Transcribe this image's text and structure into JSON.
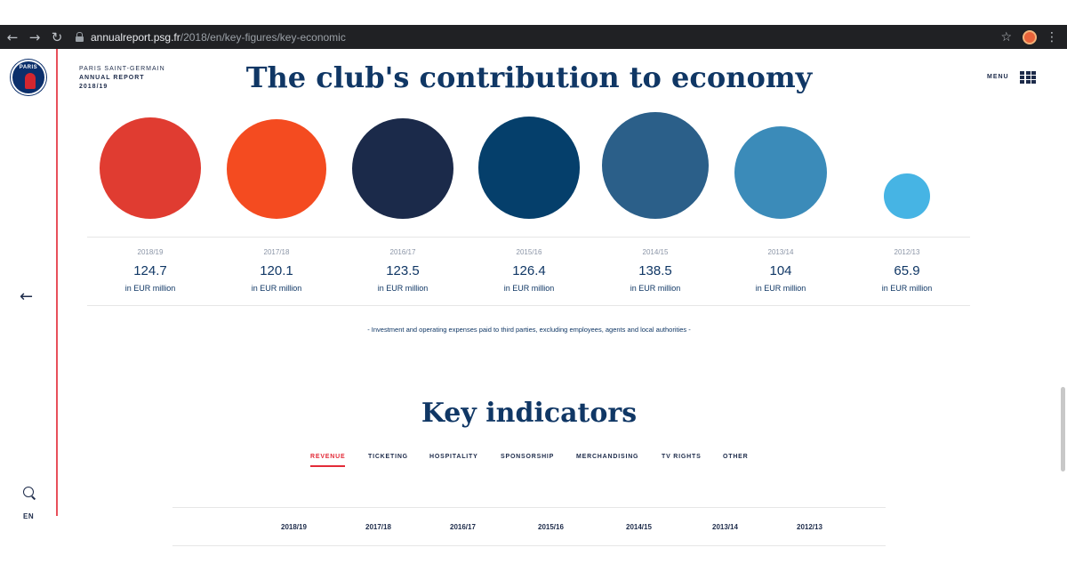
{
  "browser": {
    "url_host": "annualreport.psg.fr",
    "url_path": "/2018/en/key-figures/key-economic"
  },
  "brand": {
    "line1": "PARIS SAINT-GERMAIN",
    "line2": "ANNUAL REPORT",
    "line3": "2018/19",
    "logo_text": "PARIS"
  },
  "header": {
    "title": "The club's contribution to economy",
    "menu_label": "MENU"
  },
  "sidebar": {
    "lang": "EN"
  },
  "economy": {
    "unit": "in EUR million",
    "note": "- Investment and operating expenses paid to third parties, excluding employees, agents and local authorities -",
    "items": [
      {
        "year": "2018/19",
        "value": "124.7",
        "color": "#e03c31"
      },
      {
        "year": "2017/18",
        "value": "120.1",
        "color": "#f44b20"
      },
      {
        "year": "2016/17",
        "value": "123.5",
        "color": "#1b2a4a"
      },
      {
        "year": "2015/16",
        "value": "126.4",
        "color": "#053f6b"
      },
      {
        "year": "2014/15",
        "value": "138.5",
        "color": "#2b5f89"
      },
      {
        "year": "2013/14",
        "value": "104",
        "color": "#3b8bb9"
      },
      {
        "year": "2012/13",
        "value": "65.9",
        "color": "#46b4e4"
      }
    ]
  },
  "indicators": {
    "title": "Key indicators",
    "tabs": [
      "REVENUE",
      "TICKETING",
      "HOSPITALITY",
      "SPONSORSHIP",
      "MERCHANDISING",
      "TV RIGHTS",
      "OTHER"
    ],
    "active_tab": "REVENUE",
    "years": [
      "2018/19",
      "2017/18",
      "2016/17",
      "2015/16",
      "2014/15",
      "2013/14",
      "2012/13"
    ]
  }
}
